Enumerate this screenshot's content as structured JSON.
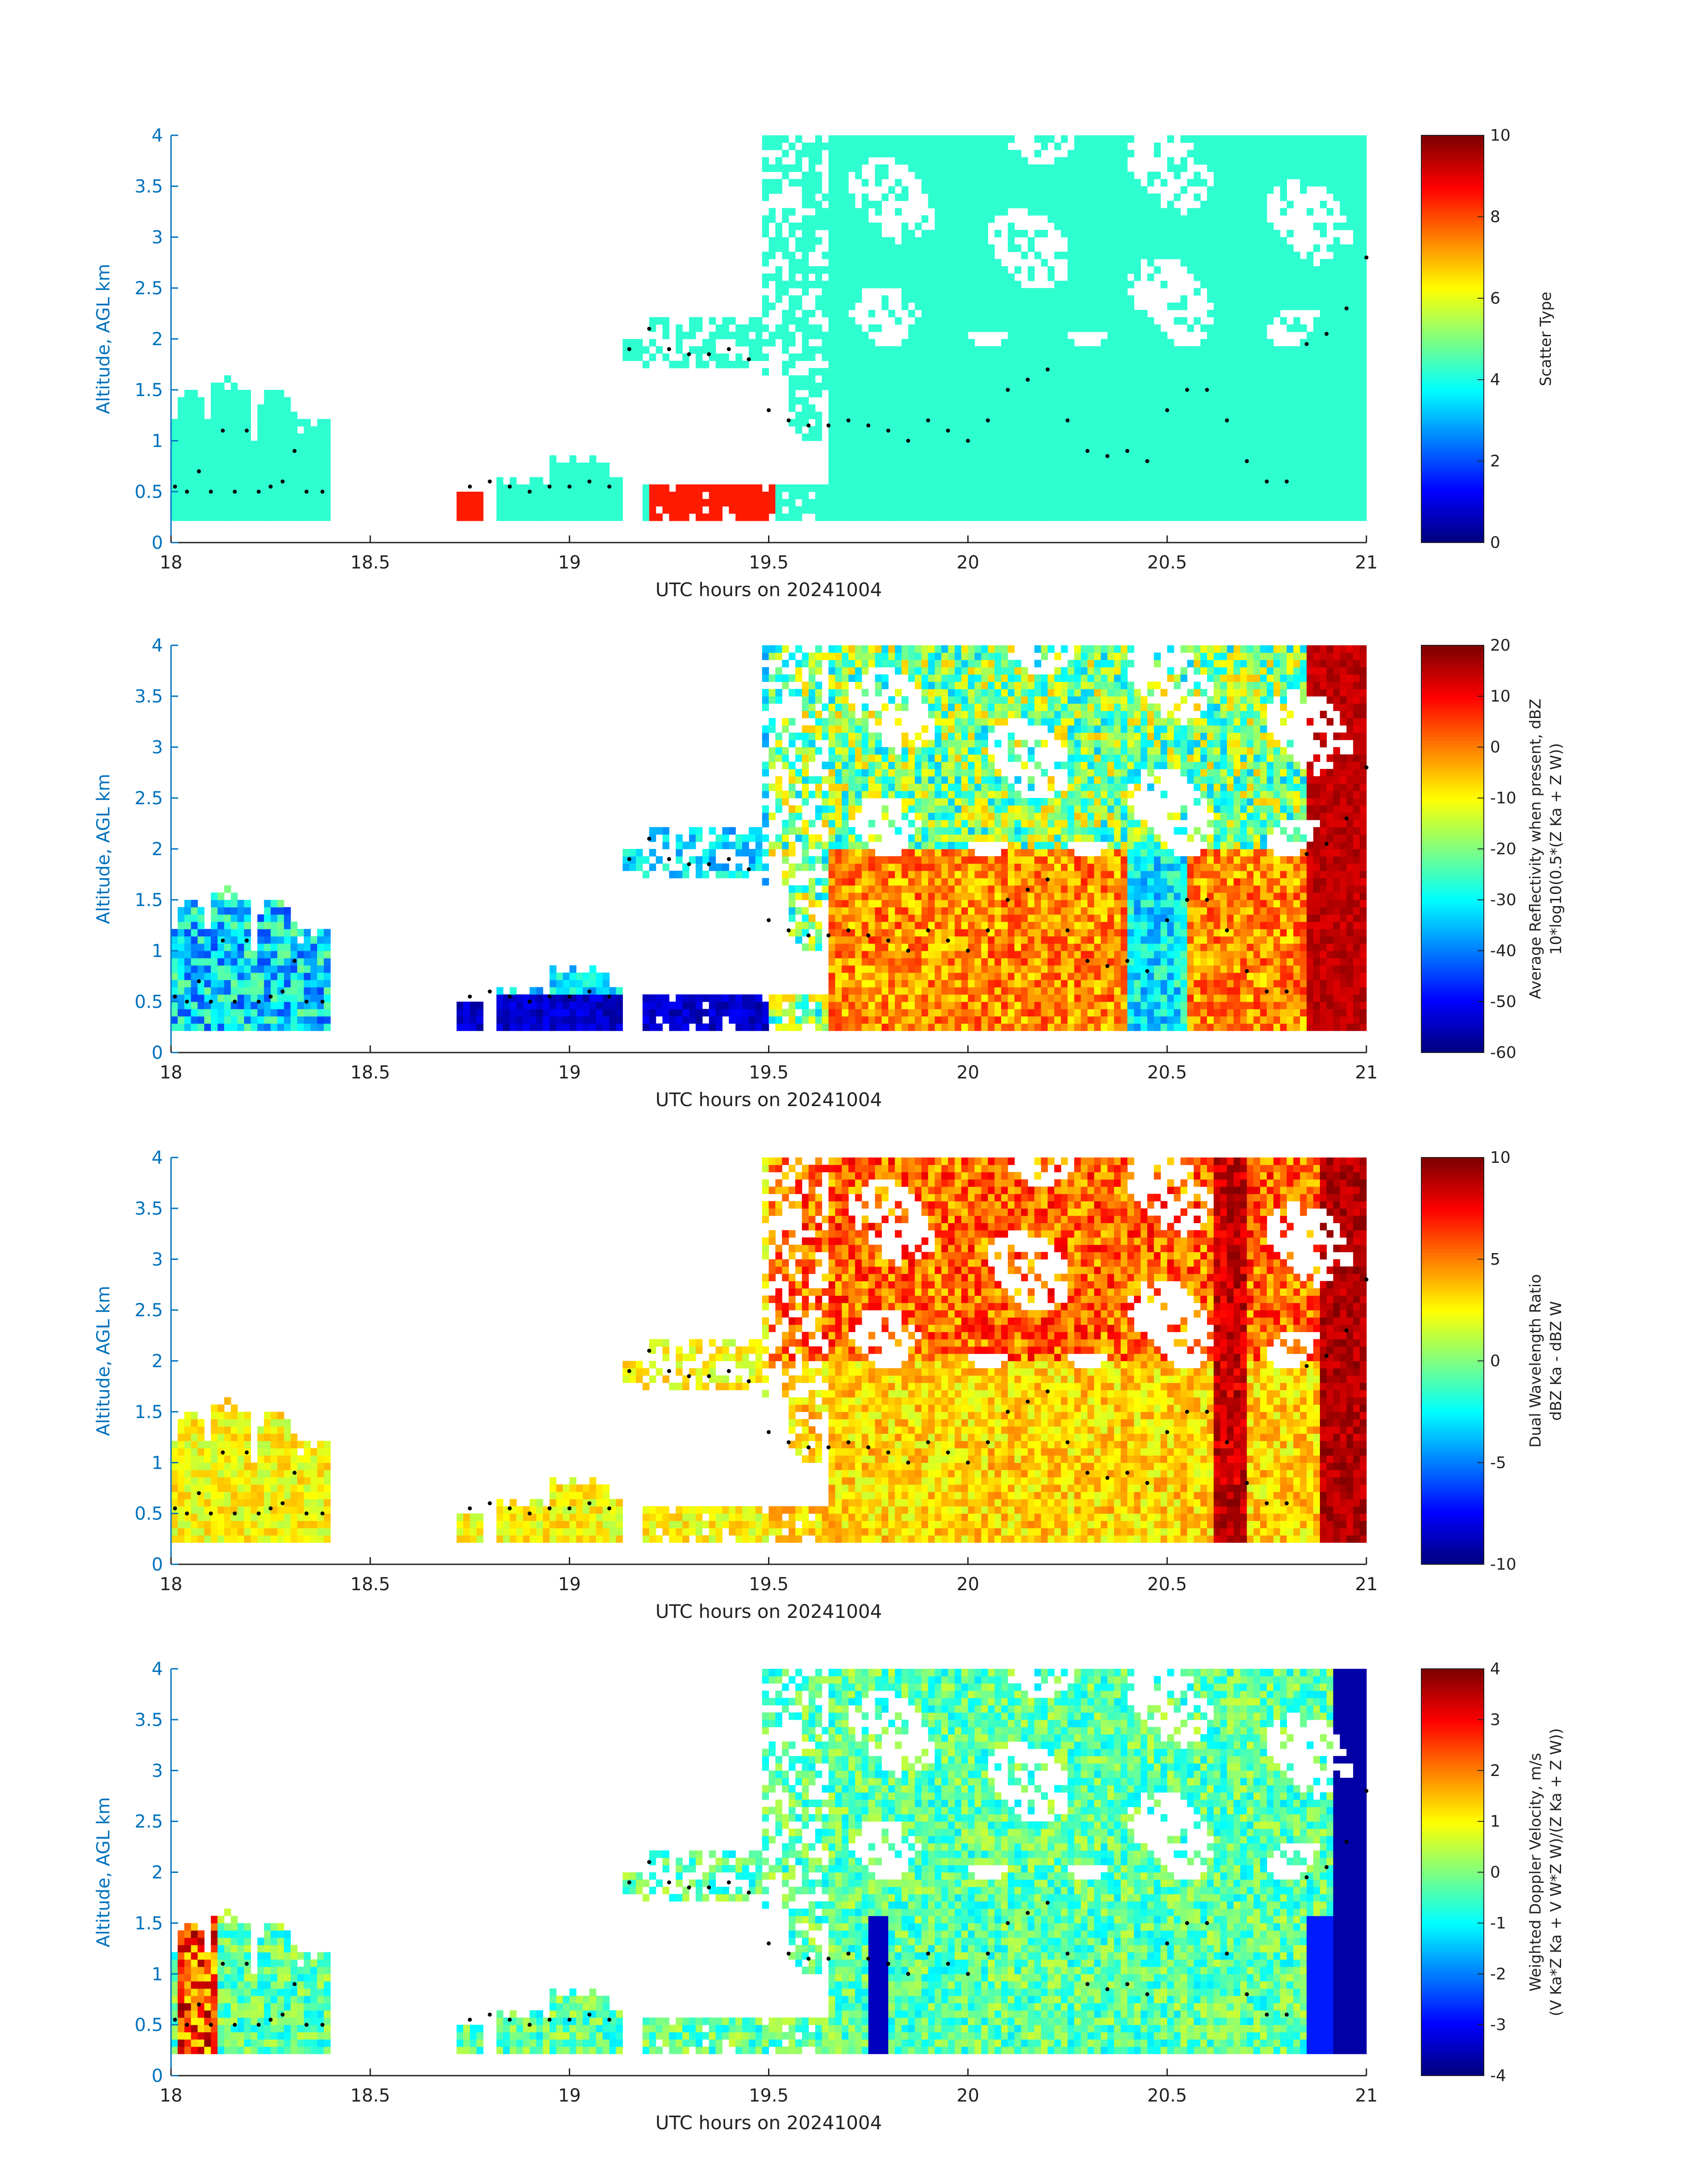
{
  "chart_data": [
    {
      "type": "heatmap",
      "xlabel": "UTC hours on 20241004",
      "ylabel": "Altitude, AGL km",
      "xlim": [
        18,
        21
      ],
      "ylim": [
        0,
        4
      ],
      "xticks": [
        "18",
        "18.5",
        "19",
        "19.5",
        "20",
        "20.5",
        "21"
      ],
      "yticks": [
        "0",
        "0.5",
        "1",
        "1.5",
        "2",
        "2.5",
        "3",
        "3.5",
        "4"
      ],
      "colorbar": {
        "label_lines": [
          "Scatter Type"
        ],
        "range": [
          0,
          10
        ],
        "ticks": [
          "0",
          "2",
          "4",
          "6",
          "8",
          "10"
        ],
        "colormap": "jet"
      },
      "field": "scatter",
      "description_values": {
        "dominant_value": 4.2,
        "secondary_value": 8.5
      }
    },
    {
      "type": "heatmap",
      "xlabel": "UTC hours on 20241004",
      "ylabel": "Altitude, AGL km",
      "xlim": [
        18,
        21
      ],
      "ylim": [
        0,
        4
      ],
      "xticks": [
        "18",
        "18.5",
        "19",
        "19.5",
        "20",
        "20.5",
        "21"
      ],
      "yticks": [
        "0",
        "0.5",
        "1",
        "1.5",
        "2",
        "2.5",
        "3",
        "3.5",
        "4"
      ],
      "colorbar": {
        "label_lines": [
          "Average Reflectivity when present, dBZ",
          "10*log10(0.5*(Z_Ka + Z_W))"
        ],
        "range": [
          -60,
          20
        ],
        "ticks": [
          "-60",
          "-50",
          "-40",
          "-30",
          "-20",
          "-10",
          "0",
          "10",
          "20"
        ],
        "colormap": "jet"
      },
      "field": "reflectivity"
    },
    {
      "type": "heatmap",
      "xlabel": "UTC hours on 20241004",
      "ylabel": "Altitude, AGL km",
      "xlim": [
        18,
        21
      ],
      "ylim": [
        0,
        4
      ],
      "xticks": [
        "18",
        "18.5",
        "19",
        "19.5",
        "20",
        "20.5",
        "21"
      ],
      "yticks": [
        "0",
        "0.5",
        "1",
        "1.5",
        "2",
        "2.5",
        "3",
        "3.5",
        "4"
      ],
      "colorbar": {
        "label_lines": [
          "Dual Wavelength Ratio",
          "dBZ_Ka - dBZ_W"
        ],
        "range": [
          -10,
          10
        ],
        "ticks": [
          "-10",
          "-5",
          "0",
          "5",
          "10"
        ],
        "colormap": "jet"
      },
      "field": "dwr"
    },
    {
      "type": "heatmap",
      "xlabel": "UTC hours on 20241004",
      "ylabel": "Altitude, AGL km",
      "xlim": [
        18,
        21
      ],
      "ylim": [
        0,
        4
      ],
      "xticks": [
        "18",
        "18.5",
        "19",
        "19.5",
        "20",
        "20.5",
        "21"
      ],
      "yticks": [
        "0",
        "0.5",
        "1",
        "1.5",
        "2",
        "2.5",
        "3",
        "3.5",
        "4"
      ],
      "colorbar": {
        "label_lines": [
          "Weighted Doppler Velocity, m/s",
          "(V_Ka*Z_Ka + V_W*Z_W)/(Z_Ka + Z_W))"
        ],
        "range": [
          -4,
          4
        ],
        "ticks": [
          "-4",
          "-3",
          "-2",
          "-1",
          "0",
          "1",
          "2",
          "3",
          "4"
        ],
        "colormap": "jet"
      },
      "field": "velocity"
    }
  ],
  "cloud_top_series": {
    "x": [
      18.01,
      18.04,
      18.07,
      18.1,
      18.13,
      18.16,
      18.19,
      18.22,
      18.25,
      18.28,
      18.31,
      18.34,
      18.38,
      18.75,
      18.8,
      18.85,
      18.9,
      18.95,
      19.0,
      19.05,
      19.1,
      19.15,
      19.2,
      19.25,
      19.3,
      19.35,
      19.4,
      19.45,
      19.5,
      19.55,
      19.6,
      19.65,
      19.7,
      19.75,
      19.8,
      19.85,
      19.9,
      19.95,
      20.0,
      20.05,
      20.1,
      20.15,
      20.2,
      20.25,
      20.3,
      20.35,
      20.4,
      20.45,
      20.5,
      20.55,
      20.6,
      20.65,
      20.7,
      20.75,
      20.8,
      20.85,
      20.9,
      20.95,
      21.0
    ],
    "y": [
      0.55,
      0.5,
      0.7,
      0.5,
      1.1,
      0.5,
      1.1,
      0.5,
      0.55,
      0.6,
      0.9,
      0.5,
      0.5,
      0.55,
      0.6,
      0.55,
      0.5,
      0.55,
      0.55,
      0.6,
      0.55,
      1.9,
      2.1,
      1.9,
      1.85,
      1.85,
      1.9,
      1.8,
      1.3,
      1.2,
      1.15,
      1.15,
      1.2,
      1.15,
      1.1,
      1.0,
      1.2,
      1.1,
      1.0,
      1.2,
      1.5,
      1.6,
      1.7,
      1.2,
      0.9,
      0.85,
      0.9,
      0.8,
      1.3,
      1.5,
      1.5,
      1.2,
      0.8,
      0.6,
      0.6,
      1.95,
      2.05,
      2.3,
      2.8
    ]
  }
}
